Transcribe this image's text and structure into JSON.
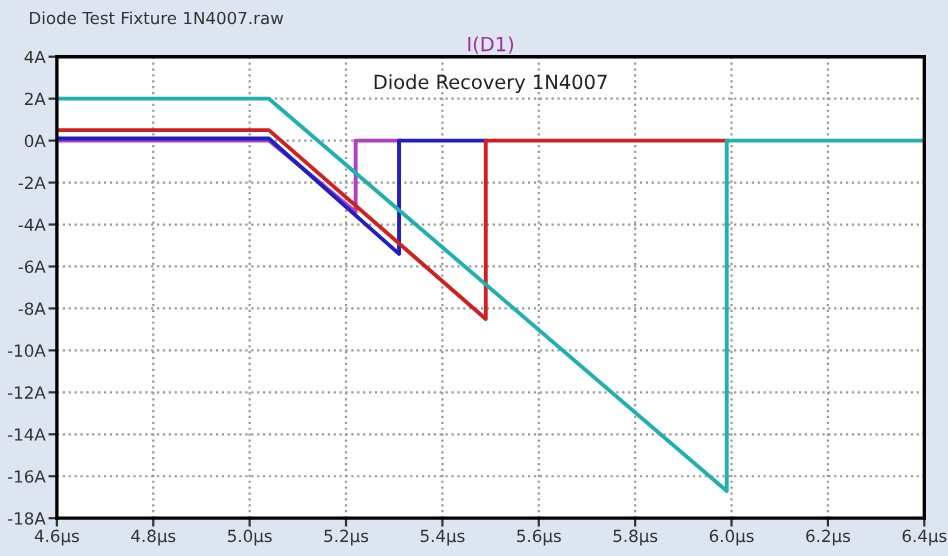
{
  "chart_data": {
    "type": "line",
    "title": "I(D1)",
    "subtitle": "Diode Recovery 1N4007",
    "annotations": [
      "Diode Test Fixture 1N4007.raw"
    ],
    "series": [
      {
        "color": "#b040c0",
        "x": [
          4.6,
          5.04,
          5.22,
          5.22,
          5.31
        ],
        "values": [
          0.0,
          0.0,
          -3.4,
          0,
          0
        ]
      },
      {
        "color": "#2020c0",
        "x": [
          4.6,
          5.04,
          5.31,
          5.31,
          5.49
        ],
        "values": [
          0.1,
          0.1,
          -5.4,
          0,
          0
        ]
      },
      {
        "color": "#d02020",
        "x": [
          4.6,
          5.04,
          5.49,
          5.49,
          5.99
        ],
        "values": [
          0.5,
          0.5,
          -8.5,
          0,
          0
        ]
      },
      {
        "color": "#20b0b0",
        "x": [
          4.6,
          5.04,
          5.99,
          5.99,
          6.4
        ],
        "values": [
          2,
          2,
          -16.7,
          0,
          0
        ]
      }
    ],
    "xlim": [
      4.6,
      6.4
    ],
    "ylim": [
      -18,
      4
    ],
    "xticks": [
      {
        "value": 4.6,
        "label": "4.6µs"
      },
      {
        "value": 4.8,
        "label": "4.8µs"
      },
      {
        "value": 5.0,
        "label": "5.0µs"
      },
      {
        "value": 5.2,
        "label": "5.2µs"
      },
      {
        "value": 5.4,
        "label": "5.4µs"
      },
      {
        "value": 5.6,
        "label": "5.6µs"
      },
      {
        "value": 5.8,
        "label": "5.8µs"
      },
      {
        "value": 6.0,
        "label": "6.0µs"
      },
      {
        "value": 6.2,
        "label": "6.2µs"
      },
      {
        "value": 6.4,
        "label": "6.4µs"
      }
    ],
    "yticks": [
      {
        "value": -18,
        "label": "-18A"
      },
      {
        "value": -16,
        "label": "-16A"
      },
      {
        "value": -14,
        "label": "-14A"
      },
      {
        "value": -12,
        "label": "-12A"
      },
      {
        "value": -10,
        "label": "-10A"
      },
      {
        "value": -8,
        "label": "-8A"
      },
      {
        "value": -6,
        "label": "-6A"
      },
      {
        "value": -4,
        "label": "-4A"
      },
      {
        "value": -2,
        "label": "-2A"
      },
      {
        "value": 0,
        "label": "0A"
      },
      {
        "value": 2,
        "label": "2A"
      },
      {
        "value": 4,
        "label": "4A"
      }
    ],
    "grid": true,
    "marker": "none",
    "line_style": "solid",
    "legend": false
  }
}
